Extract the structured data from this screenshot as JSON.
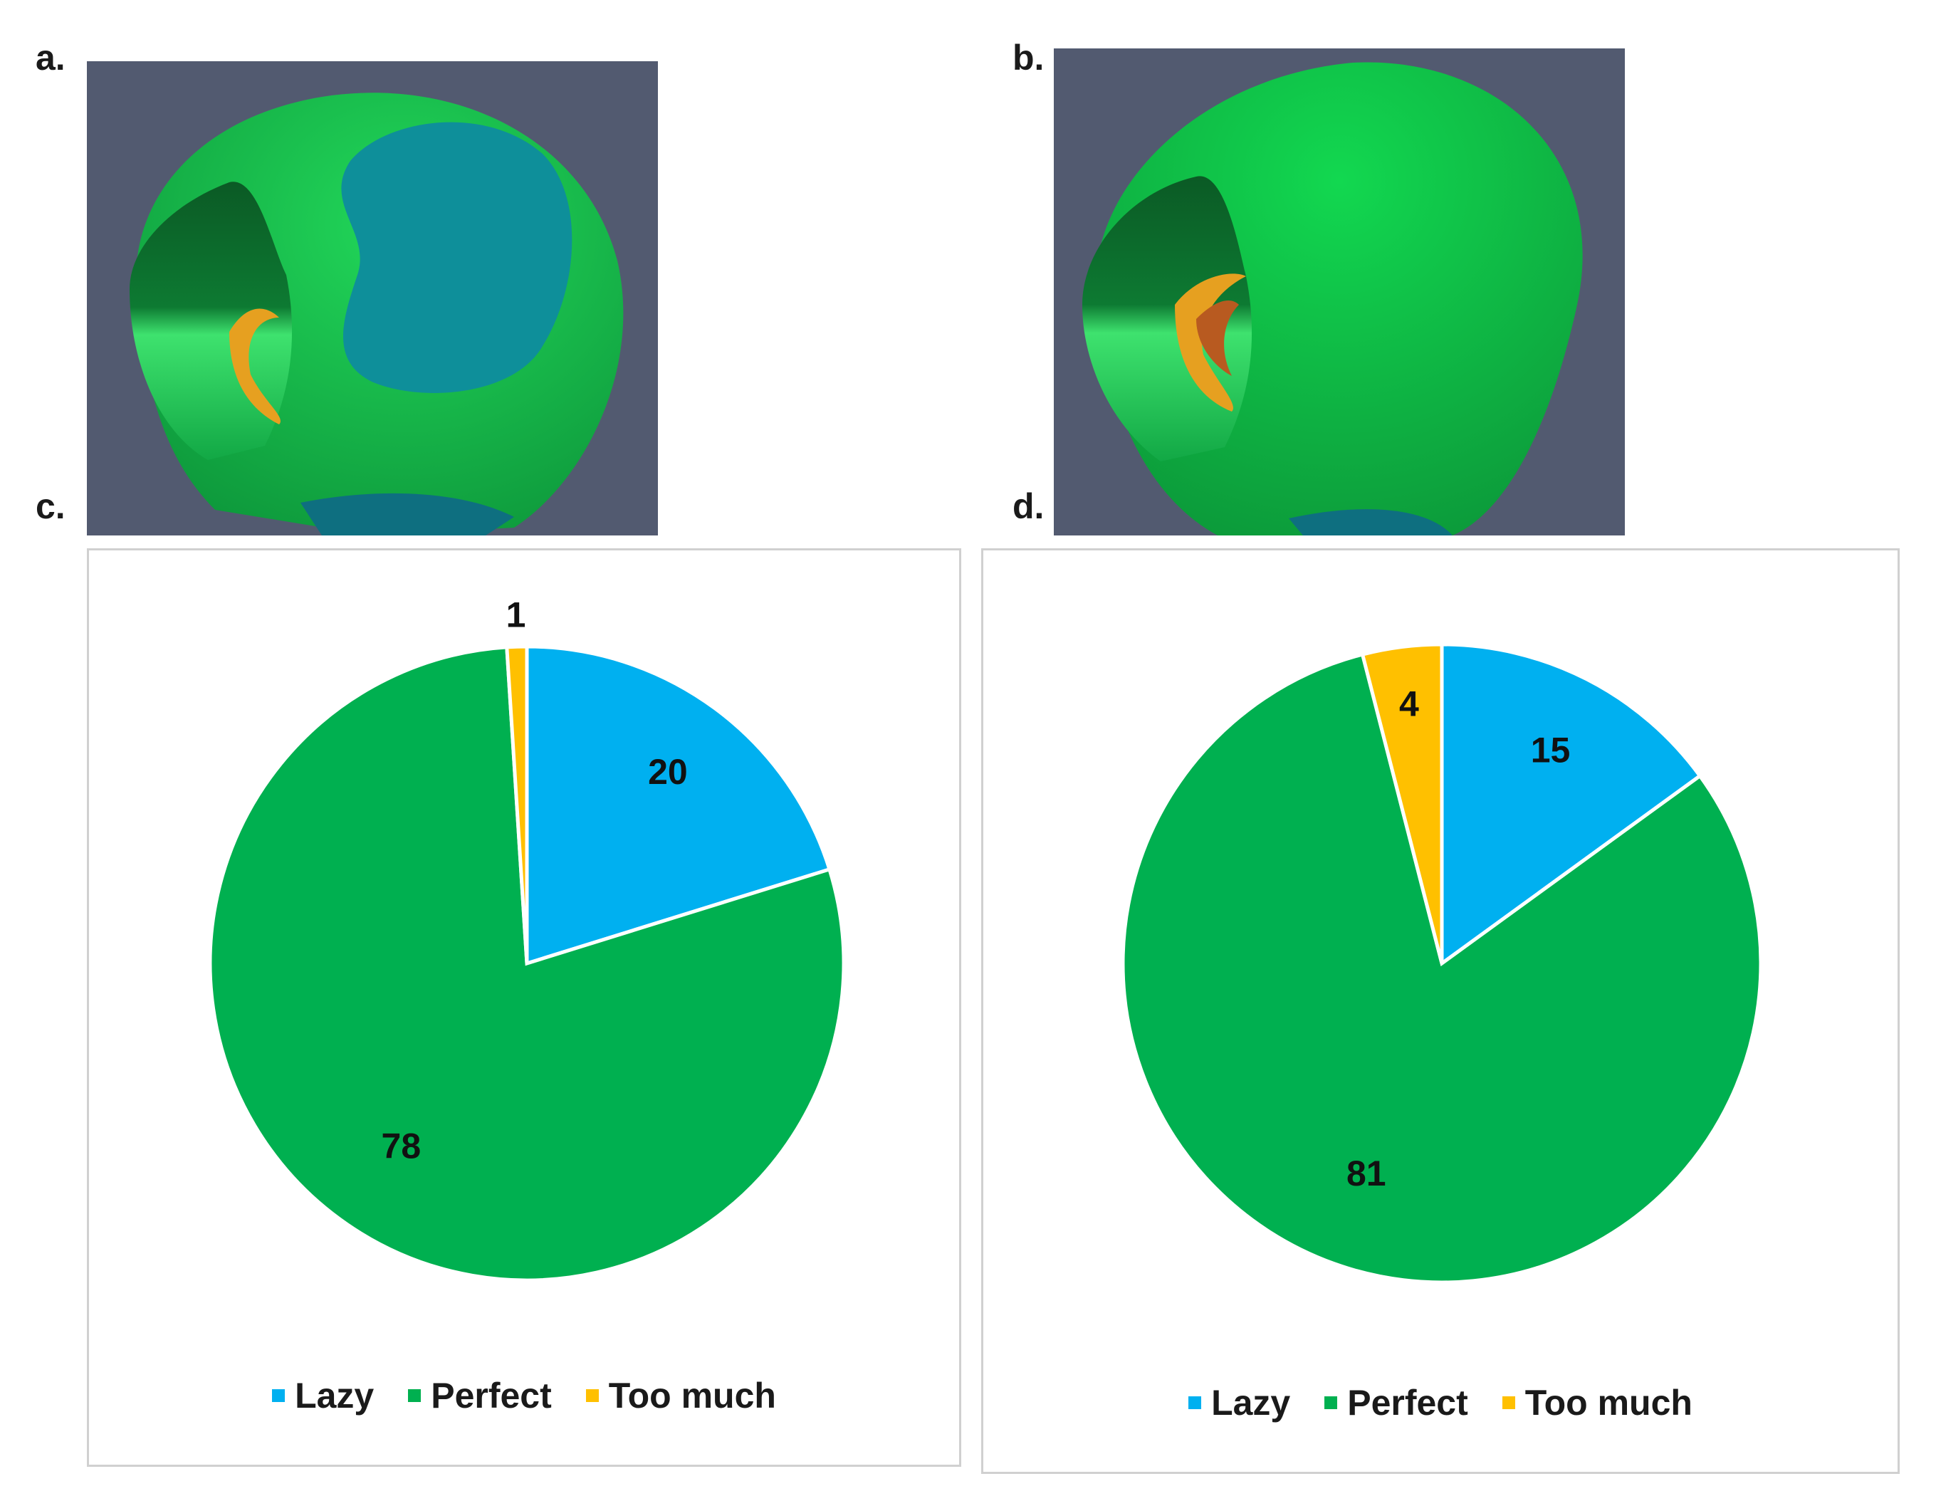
{
  "panels": {
    "a": "a.",
    "b": "b.",
    "c": "c.",
    "d": "d."
  },
  "colors": {
    "lazy": "#00b0f0",
    "perfect": "#00b050",
    "too_much": "#ffc000",
    "render_bg": "#525a70"
  },
  "legend": {
    "lazy": "Lazy",
    "perfect": "Perfect",
    "too_much": "Too much"
  },
  "chart_data": [
    {
      "type": "pie",
      "panel": "c",
      "categories": [
        "Lazy",
        "Perfect",
        "Too much"
      ],
      "values": [
        20,
        78,
        1
      ],
      "labels": [
        "20",
        "78",
        "1"
      ],
      "legend_position": "bottom"
    },
    {
      "type": "pie",
      "panel": "d",
      "categories": [
        "Lazy",
        "Perfect",
        "Too much"
      ],
      "values": [
        15,
        81,
        4
      ],
      "labels": [
        "15",
        "81",
        "4"
      ],
      "legend_position": "bottom"
    }
  ]
}
